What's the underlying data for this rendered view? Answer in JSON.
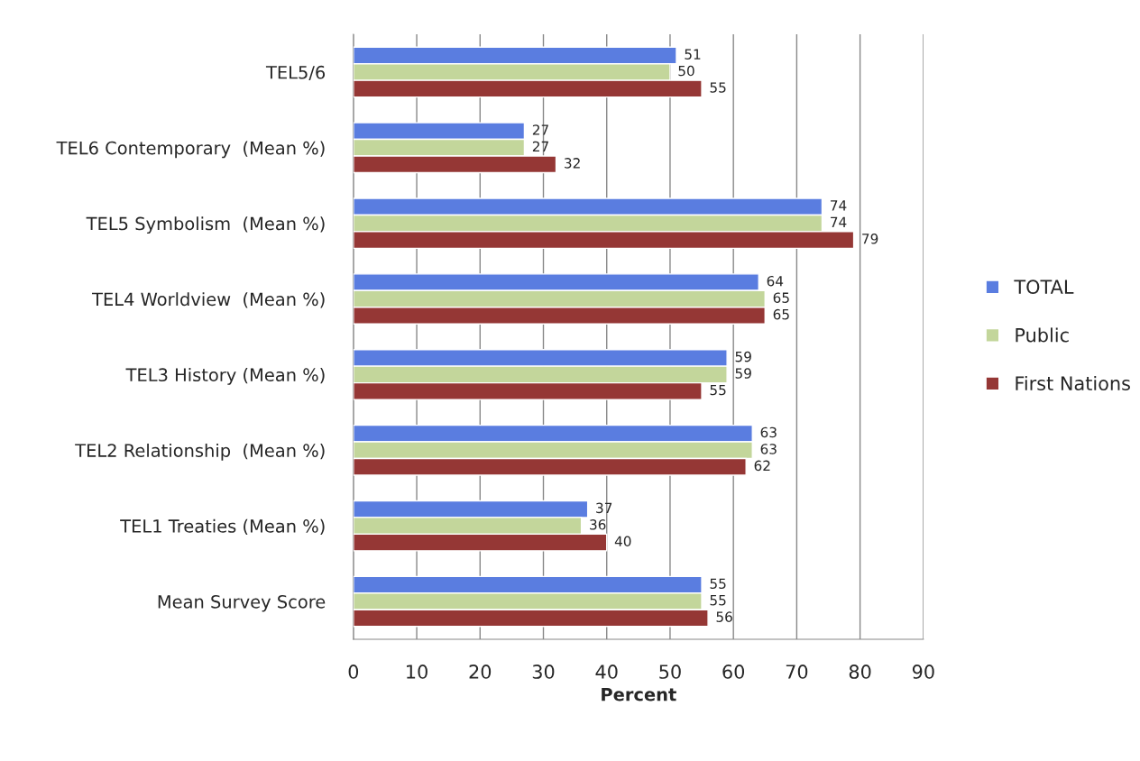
{
  "chart_data": {
    "type": "bar",
    "orientation": "horizontal",
    "xlabel": "Percent",
    "categories": [
      "TEL5/6",
      "TEL6 Contemporary  (Mean %)",
      "TEL5 Symbolism  (Mean %)",
      "TEL4 Worldview  (Mean %)",
      "TEL3 History (Mean %)",
      "TEL2 Relationship  (Mean %)",
      "TEL1 Treaties (Mean %)",
      "Mean Survey Score"
    ],
    "series": [
      {
        "name": "TOTAL",
        "color": "#5a7de0",
        "values": [
          51,
          27,
          74,
          64,
          59,
          63,
          37,
          55
        ]
      },
      {
        "name": "Public",
        "color": "#c3d69b",
        "values": [
          50,
          27,
          74,
          65,
          59,
          63,
          36,
          55
        ]
      },
      {
        "name": "First Nations",
        "color": "#953735",
        "values": [
          55,
          32,
          79,
          65,
          55,
          62,
          40,
          56
        ]
      }
    ],
    "xlim": [
      0,
      90
    ],
    "xticks": [
      0,
      10,
      20,
      30,
      40,
      50,
      60,
      70,
      80,
      90
    ],
    "grid": "x",
    "legend": "right",
    "data_labels": true
  }
}
